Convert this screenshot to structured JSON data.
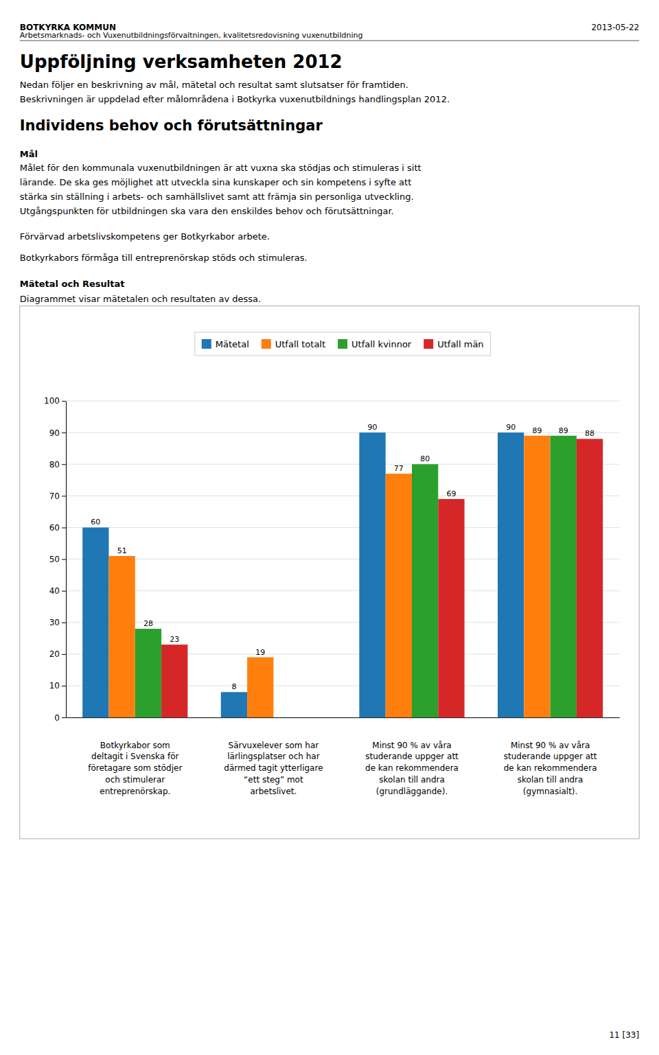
{
  "header_left_line1": "BOTKYRKA KOMMUN",
  "header_left_line2": "Arbetsmarknads- och Vuxenutbildningsförvaltningen, kvalitetsredovisning vuxenutbildning",
  "header_right": "2013-05-22",
  "title": "Uppföljning verksamheten 2012",
  "subtitle": "Nedan följer en beskrivning av mål, mätetal och resultat samt slutsatser för framtiden.",
  "desc1": "Beskrivningen är uppdelad efter målområdena i Botkyrka vuxenutbildnings handlingsplan 2012.",
  "section_title": "Individens behov och förutsättningar",
  "mal_label": "Mål",
  "mal_lines": [
    "Målet för den kommunala vuxenutbildningen är att vuxna ska stödjas och stimuleras i sitt",
    "lärande. De ska ges möjlighet att utveckla sina kunskaper och sin kompetens i syfte att",
    "stärka sin ställning i arbets- och samhällslivet samt att främja sin personliga utveckling.",
    "Utgångspunkten för utbildningen ska vara den enskildes behov och förutsättningar."
  ],
  "para1": "Förvärvad arbetslivskompetens ger Botkyrkabor arbete.",
  "para2": "Botkyrkabors förmåga till entreprenörskap stöds och stimuleras.",
  "matal_resultat_title": "Mätetal och Resultat",
  "matal_resultat_desc": "Diagrammet visar mätetalen och resultaten av dessa.",
  "page_number": "11 [33]",
  "chart_data": {
    "type": "bar",
    "categories": [
      "Botkyrkabor som\ndeltagit i Svenska för\nföretagare som stödjer\noch stimulerar\nentreprenörskap.",
      "Särvuxelever som har\nlärlingsplatser och har\ndärmed tagit ytterligare\n“ett steg” mot\narbetslivet.",
      "Minst 90 % av våra\nstuderande uppger att\nde kan rekommendera\nskolan till andra\n(grundläggande).",
      "Minst 90 % av våra\nstuderande uppger att\nde kan rekommendera\nskolan till andra\n(gymnasialt)."
    ],
    "series": [
      {
        "name": "Mätetal",
        "values": [
          60,
          8,
          90,
          90
        ]
      },
      {
        "name": "Utfall totalt",
        "values": [
          51,
          19,
          77,
          89
        ]
      },
      {
        "name": "Utfall kvinnor",
        "values": [
          28,
          null,
          80,
          89
        ]
      },
      {
        "name": "Utfall män",
        "values": [
          23,
          null,
          69,
          88
        ]
      }
    ],
    "ylim": [
      0,
      100
    ],
    "yticks": [
      0,
      10,
      20,
      30,
      40,
      50,
      60,
      70,
      80,
      90,
      100
    ],
    "grid": true,
    "legend": "top",
    "data_labels": true
  }
}
